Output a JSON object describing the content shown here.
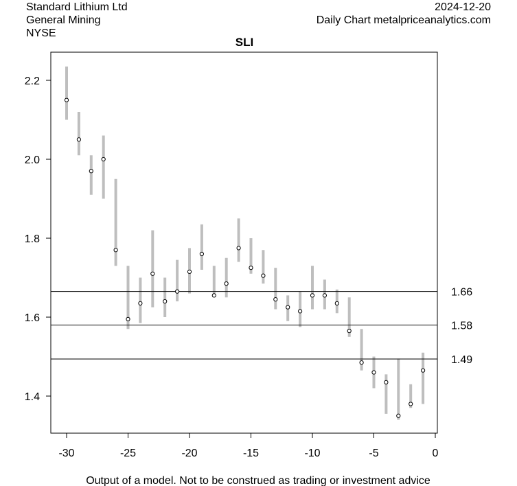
{
  "header": {
    "company": "Standard Lithium Ltd",
    "sector": "General Mining",
    "exchange": "NYSE",
    "date": "2024-12-20",
    "source": "Daily Chart metalpriceanalytics.com"
  },
  "footer": "Output of a model. Not to be construed as trading or investment advice",
  "colors": {
    "range_bar": "#bebebe",
    "line": "#000000"
  },
  "chart_data": {
    "type": "range",
    "title": "SLI",
    "xlabel": "",
    "ylabel": "",
    "xlim": [
      -31,
      0.2
    ],
    "ylim": [
      1.3,
      2.3
    ],
    "x_ticks": [
      -30,
      -25,
      -20,
      -15,
      -10,
      -5,
      0
    ],
    "y_ticks": [
      1.4,
      1.6,
      1.8,
      2.0,
      2.2
    ],
    "x_tick_labels": [
      "-30",
      "-25",
      "-20",
      "-15",
      "-10",
      "-5",
      "0"
    ],
    "y_tick_labels": [
      "1.4",
      "1.6",
      "1.8",
      "2.0",
      "2.2"
    ],
    "grid": false,
    "x": [
      -30,
      -29,
      -28,
      -27,
      -26,
      -25,
      -24,
      -23,
      -22,
      -21,
      -20,
      -19,
      -18,
      -17,
      -16,
      -15,
      -14,
      -13,
      -12,
      -11,
      -10,
      -9,
      -8,
      -7,
      -6,
      -5,
      -4,
      -3,
      -2,
      -1
    ],
    "close": [
      2.15,
      2.05,
      1.97,
      2.0,
      1.77,
      1.595,
      1.635,
      1.71,
      1.64,
      1.665,
      1.715,
      1.76,
      1.655,
      1.685,
      1.775,
      1.725,
      1.705,
      1.645,
      1.625,
      1.615,
      1.655,
      1.655,
      1.635,
      1.565,
      1.485,
      1.46,
      1.435,
      1.35,
      1.38,
      1.465
    ],
    "high": [
      2.235,
      2.12,
      2.01,
      2.06,
      1.95,
      1.73,
      1.7,
      1.82,
      1.7,
      1.745,
      1.775,
      1.835,
      1.73,
      1.75,
      1.85,
      1.8,
      1.77,
      1.725,
      1.655,
      1.665,
      1.73,
      1.695,
      1.67,
      1.65,
      1.57,
      1.5,
      1.455,
      1.495,
      1.43,
      1.51
    ],
    "low": [
      2.1,
      2.01,
      1.91,
      1.9,
      1.73,
      1.57,
      1.585,
      1.625,
      1.6,
      1.64,
      1.66,
      1.72,
      1.65,
      1.65,
      1.74,
      1.71,
      1.685,
      1.62,
      1.59,
      1.575,
      1.62,
      1.62,
      1.61,
      1.55,
      1.465,
      1.42,
      1.355,
      1.34,
      1.37,
      1.38
    ],
    "hlines": [
      {
        "value": 1.665,
        "label": "1.66"
      },
      {
        "value": 1.58,
        "label": "1.58"
      },
      {
        "value": 1.494,
        "label": "1.49"
      }
    ]
  }
}
